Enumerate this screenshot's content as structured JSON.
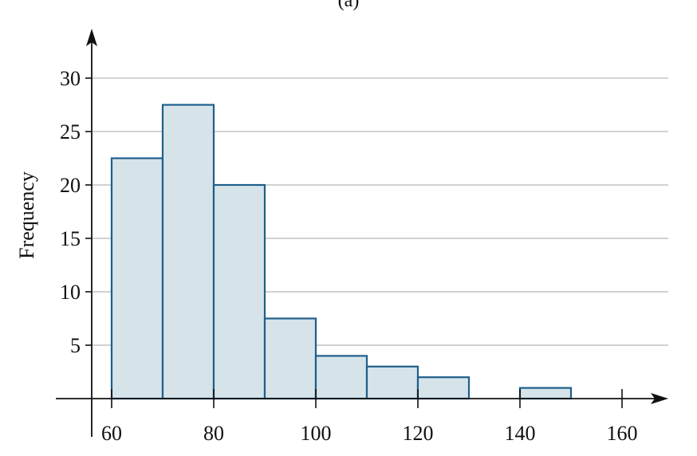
{
  "panel_label": "(a)",
  "colors": {
    "bar_fill": "#d6e4ea",
    "bar_stroke": "#1f5f8b",
    "grid": "#b8b8b8",
    "axis": "#111111"
  },
  "chart_data": {
    "type": "bar",
    "title": "",
    "xlabel": "",
    "ylabel": "Frequency",
    "bins": [
      {
        "from": 60,
        "to": 70,
        "value": 22.5
      },
      {
        "from": 70,
        "to": 80,
        "value": 27.5
      },
      {
        "from": 80,
        "to": 90,
        "value": 20
      },
      {
        "from": 90,
        "to": 100,
        "value": 7.5
      },
      {
        "from": 100,
        "to": 110,
        "value": 4
      },
      {
        "from": 110,
        "to": 120,
        "value": 3
      },
      {
        "from": 120,
        "to": 130,
        "value": 2
      },
      {
        "from": 140,
        "to": 150,
        "value": 1
      }
    ],
    "xticks": [
      60,
      80,
      100,
      120,
      140,
      160
    ],
    "yticks": [
      5,
      10,
      15,
      20,
      25,
      30
    ],
    "xlim": [
      52,
      168
    ],
    "ylim": [
      0,
      33
    ],
    "grid": true,
    "legend": "none"
  }
}
